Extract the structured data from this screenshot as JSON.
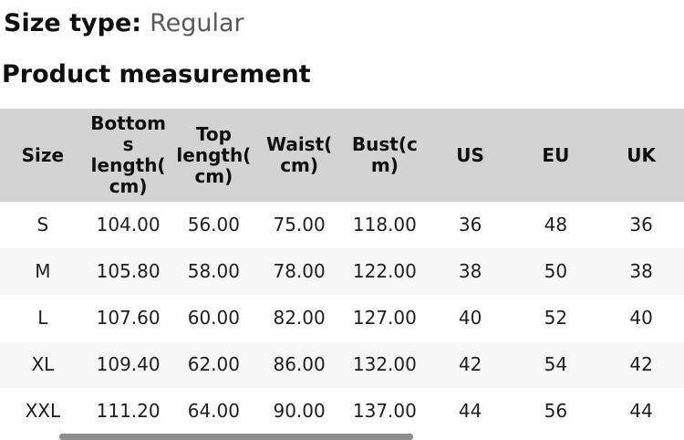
{
  "header": {
    "size_type_label": "Size type:",
    "size_type_value": "Regular",
    "section_title": "Product measurement"
  },
  "table": {
    "columns": [
      "Size",
      "Bottoms length(cm)",
      "Top length(cm)",
      "Waist(cm)",
      "Bust(cm)",
      "US",
      "EU",
      "UK"
    ],
    "rows": [
      [
        "S",
        "104.00",
        "56.00",
        "75.00",
        "118.00",
        "36",
        "48",
        "36"
      ],
      [
        "M",
        "105.80",
        "58.00",
        "78.00",
        "122.00",
        "38",
        "50",
        "38"
      ],
      [
        "L",
        "107.60",
        "60.00",
        "82.00",
        "127.00",
        "40",
        "52",
        "40"
      ],
      [
        "XL",
        "109.40",
        "62.00",
        "86.00",
        "132.00",
        "42",
        "54",
        "42"
      ],
      [
        "XXL",
        "111.20",
        "64.00",
        "90.00",
        "137.00",
        "44",
        "56",
        "44"
      ]
    ]
  },
  "colors": {
    "table_header_bg": "#d3d3d3",
    "alt_row_bg": "#f7f7f7",
    "title_text": "#0f0f0f",
    "data_text": "#1e1e1e",
    "size_type_value_text": "#595959",
    "scrollbar_thumb": "#8f8f8f",
    "background": "#ffffff"
  }
}
